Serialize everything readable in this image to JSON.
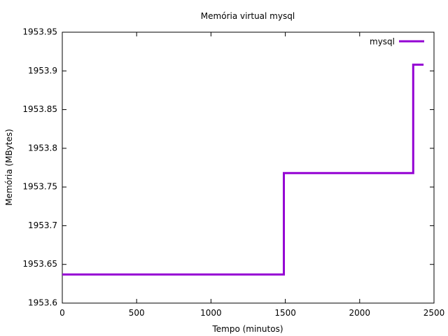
{
  "chart_data": {
    "type": "line",
    "title": "Memória virtual mysql",
    "xlabel": "Tempo (minutos)",
    "ylabel": "Memória (MBytes)",
    "xlim": [
      0,
      2500
    ],
    "ylim": [
      1953.6,
      1953.95
    ],
    "x_ticks": [
      "0",
      "500",
      "1000",
      "1500",
      "2000",
      "2500"
    ],
    "y_ticks": [
      "1953.6",
      "1953.65",
      "1953.7",
      "1953.75",
      "1953.8",
      "1953.85",
      "1953.9",
      "1953.95"
    ],
    "grid": false,
    "legend_position": "top-right",
    "series": [
      {
        "name": "mysql",
        "color": "#9400d3",
        "step": true,
        "x": [
          0,
          1490,
          1490,
          2360,
          2360,
          2430
        ],
        "y": [
          1953.637,
          1953.637,
          1953.768,
          1953.768,
          1953.908,
          1953.908
        ]
      }
    ]
  }
}
